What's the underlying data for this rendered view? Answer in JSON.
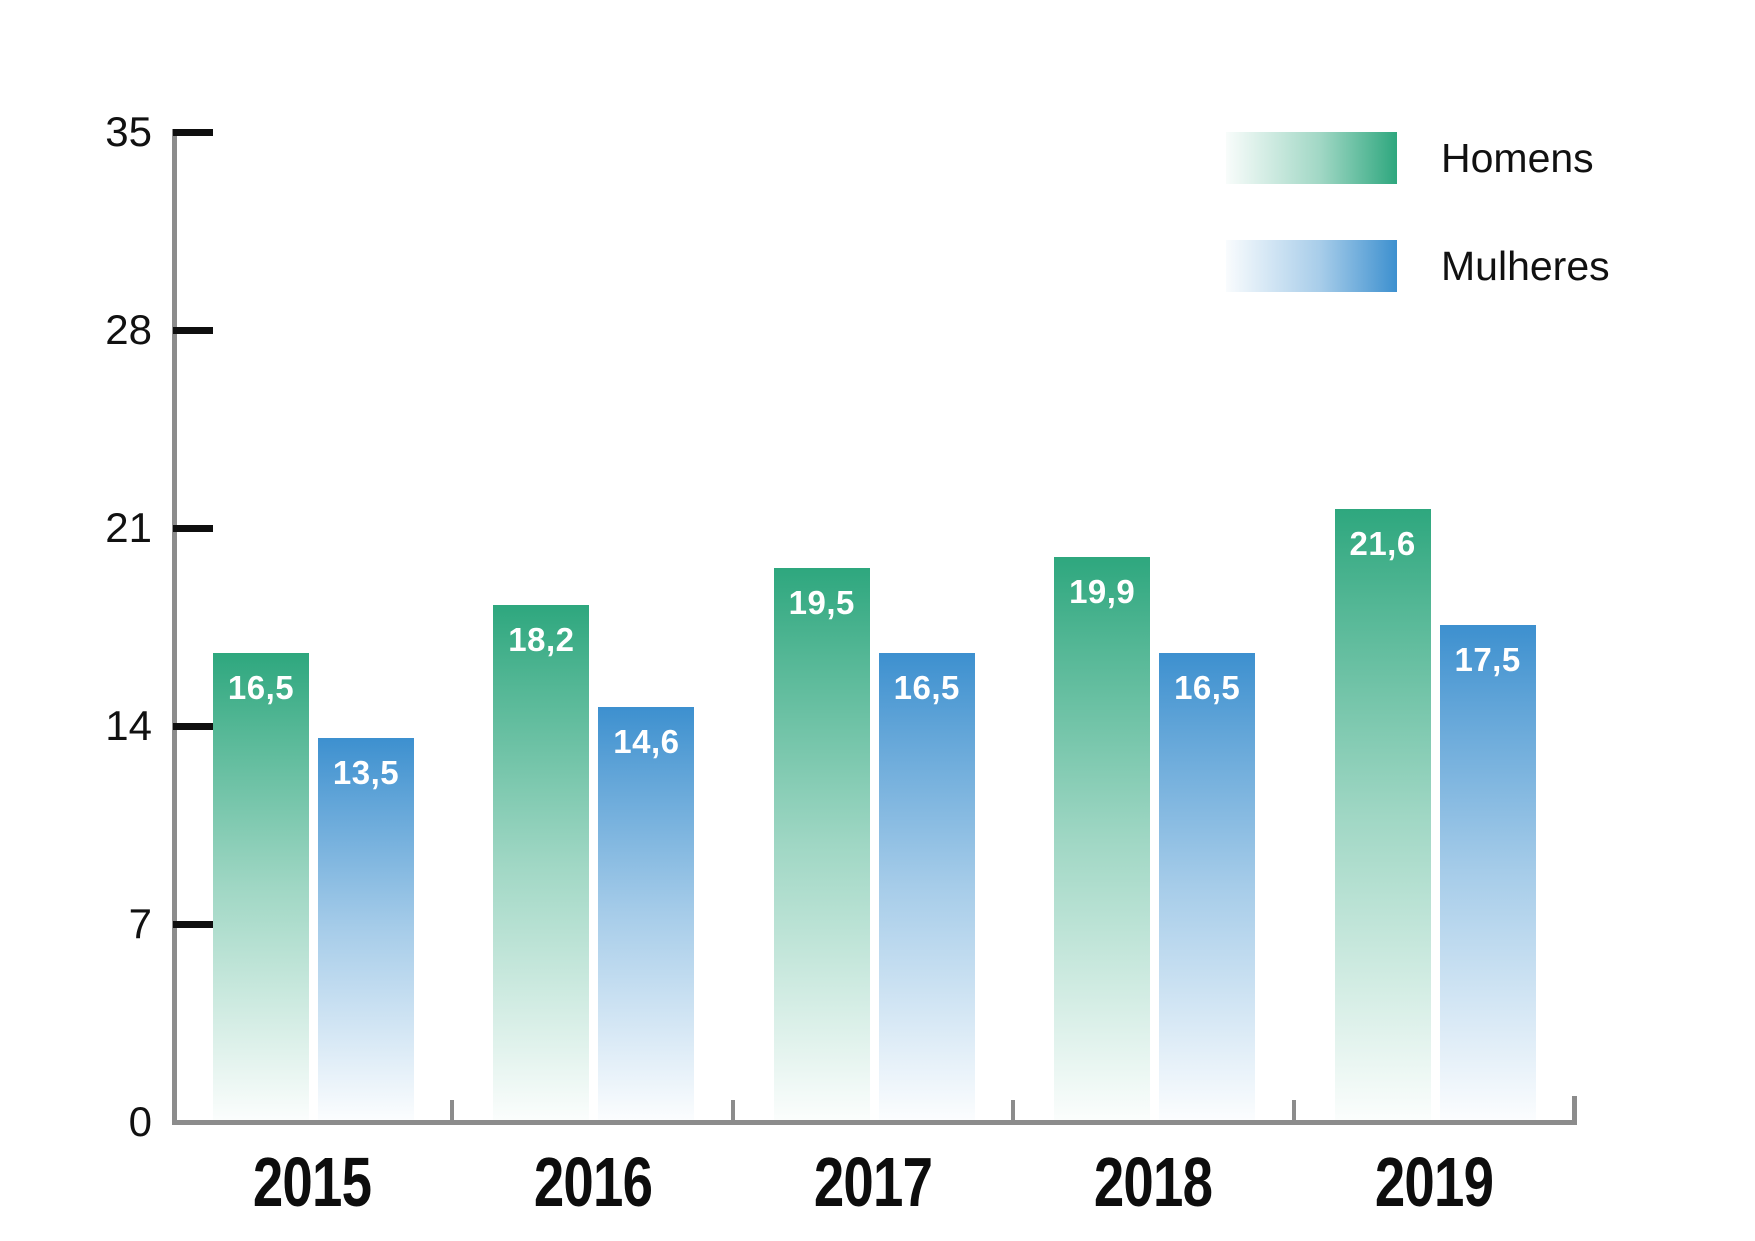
{
  "chart_data": {
    "type": "bar",
    "title": "",
    "xlabel": "",
    "ylabel": "",
    "categories": [
      "2015",
      "2016",
      "2017",
      "2018",
      "2019"
    ],
    "series": [
      {
        "name": "Homens",
        "color": "#2ea77e",
        "values": [
          16.5,
          18.2,
          19.5,
          19.9,
          21.6
        ],
        "value_labels": [
          "16,5",
          "18,2",
          "19,5",
          "19,9",
          "21,6"
        ]
      },
      {
        "name": "Mulheres",
        "color": "#3d90cf",
        "values": [
          13.5,
          14.6,
          16.5,
          16.5,
          17.5
        ],
        "value_labels": [
          "13,5",
          "14,6",
          "16,5",
          "16,5",
          "17,5"
        ]
      }
    ],
    "ylim": [
      0,
      35
    ],
    "yticks": [
      0,
      7,
      14,
      21,
      28,
      35
    ],
    "ytick_labels": [
      "0",
      "7",
      "14",
      "21",
      "28",
      "35"
    ],
    "grid": false,
    "bar_gradient": "color at top fading to white at bottom",
    "legend": {
      "position": "top-right",
      "items": [
        {
          "label": "Homens",
          "color": "#2ea77e"
        },
        {
          "label": "Mulheres",
          "color": "#3d90cf"
        }
      ]
    }
  },
  "colors": {
    "axis": "#8c8c8c",
    "tick": "#0f0f0f",
    "text": "#111111",
    "bar_value_text": "#ffffff"
  }
}
